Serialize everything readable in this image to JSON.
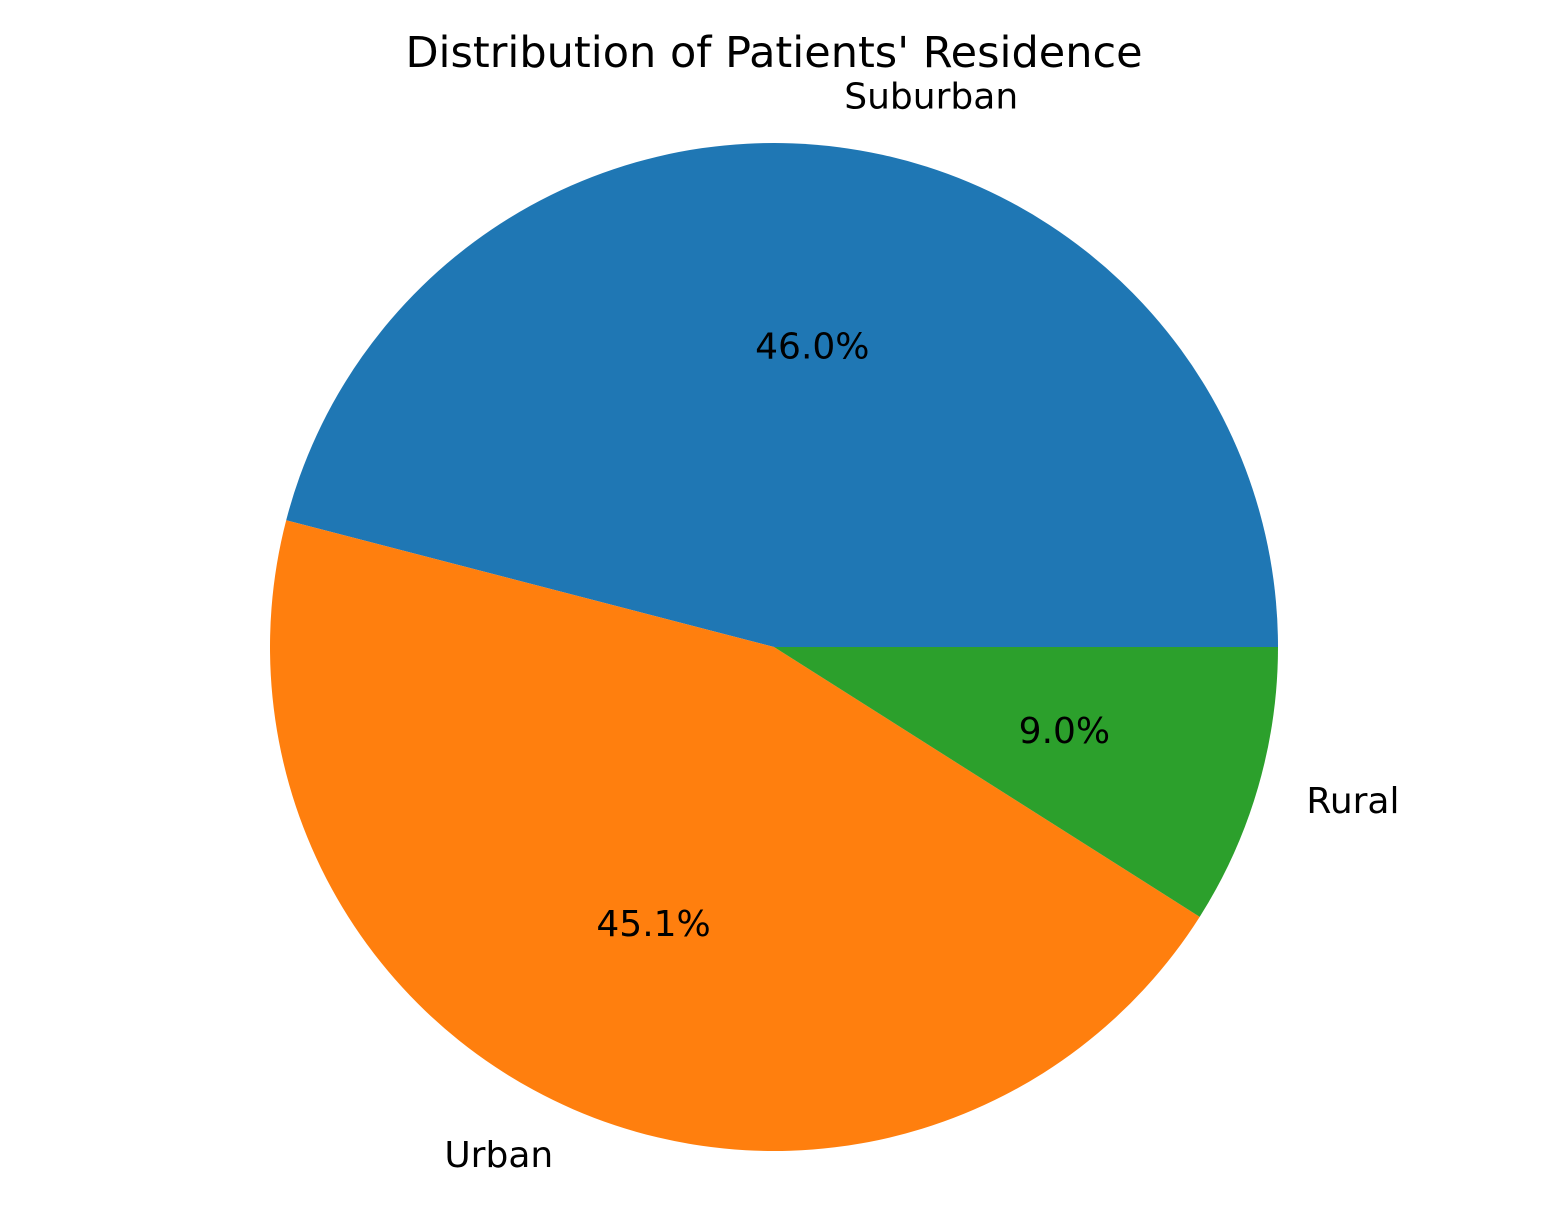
{
  "chart_data": {
    "type": "pie",
    "title": "Distribution of Patients' Residence",
    "slices": [
      {
        "label": "Suburban",
        "value": 46.0,
        "pct_label": "46.0%",
        "color": "#1f77b4"
      },
      {
        "label": "Urban",
        "value": 45.1,
        "pct_label": "45.1%",
        "color": "#ff7f0e"
      },
      {
        "label": "Rural",
        "value": 9.0,
        "pct_label": "9.0%",
        "color": "#2ca02c"
      }
    ],
    "start_angle_deg": 0,
    "direction": "counterclockwise",
    "legend": "none"
  }
}
